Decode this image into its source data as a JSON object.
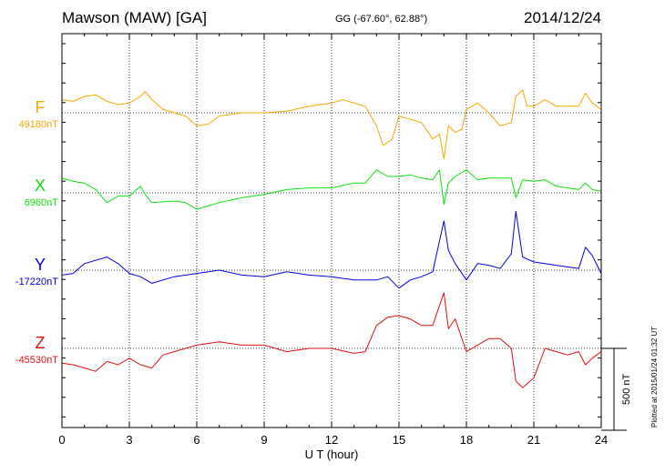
{
  "header": {
    "title": "Mawson (MAW)  [GA]",
    "coords": "GG (-67.60°,  62.88°)",
    "date": "2014/12/24"
  },
  "footer": {
    "stamp": "Plotted at 2015/01/24 01:32 UT",
    "scale_label": "500 nT"
  },
  "chart_data": {
    "type": "line",
    "xlabel": "U T (hour)",
    "xlim": [
      0,
      24
    ],
    "xticks": [
      0,
      3,
      6,
      9,
      12,
      15,
      18,
      21,
      24
    ],
    "xtick_labels": [
      "0",
      "3",
      "6",
      "9",
      "12",
      "15",
      "18",
      "21",
      "24"
    ],
    "grid": true,
    "scale_bar_nT": 500,
    "series": [
      {
        "name": "F",
        "color": "#f5a800",
        "baseline_label": "49180nT",
        "baseline_nT": 49180,
        "points": [
          [
            0,
            80
          ],
          [
            0.5,
            70
          ],
          [
            1,
            100
          ],
          [
            1.5,
            110
          ],
          [
            2,
            70
          ],
          [
            2.5,
            50
          ],
          [
            3,
            60
          ],
          [
            3.5,
            100
          ],
          [
            3.7,
            130
          ],
          [
            4,
            80
          ],
          [
            4.5,
            20
          ],
          [
            5,
            0
          ],
          [
            5.5,
            -20
          ],
          [
            6,
            -80
          ],
          [
            6.5,
            -70
          ],
          [
            7,
            -20
          ],
          [
            8,
            0
          ],
          [
            9,
            0
          ],
          [
            10,
            10
          ],
          [
            11,
            40
          ],
          [
            12,
            60
          ],
          [
            12.5,
            80
          ],
          [
            13,
            60
          ],
          [
            13.5,
            40
          ],
          [
            14,
            -80
          ],
          [
            14.3,
            -200
          ],
          [
            14.7,
            -160
          ],
          [
            15,
            -20
          ],
          [
            15.5,
            -40
          ],
          [
            16,
            -60
          ],
          [
            16.5,
            -160
          ],
          [
            16.8,
            -130
          ],
          [
            17,
            -280
          ],
          [
            17.2,
            -80
          ],
          [
            17.5,
            -120
          ],
          [
            17.8,
            -100
          ],
          [
            18,
            20
          ],
          [
            18.5,
            60
          ],
          [
            19,
            0
          ],
          [
            19.5,
            -80
          ],
          [
            20,
            -60
          ],
          [
            20.2,
            100
          ],
          [
            20.5,
            140
          ],
          [
            20.7,
            40
          ],
          [
            21,
            40
          ],
          [
            21.5,
            80
          ],
          [
            22,
            40
          ],
          [
            22.5,
            40
          ],
          [
            23,
            40
          ],
          [
            23.3,
            120
          ],
          [
            23.6,
            60
          ],
          [
            24,
            20
          ]
        ]
      },
      {
        "name": "X",
        "color": "#10e010",
        "baseline_label": "6960nT",
        "baseline_nT": 6960,
        "points": [
          [
            0,
            90
          ],
          [
            0.5,
            70
          ],
          [
            1,
            60
          ],
          [
            1.5,
            20
          ],
          [
            2,
            -60
          ],
          [
            2.5,
            -20
          ],
          [
            3,
            -20
          ],
          [
            3.5,
            40
          ],
          [
            3.7,
            -10
          ],
          [
            4,
            -60
          ],
          [
            5,
            -50
          ],
          [
            5.5,
            -60
          ],
          [
            6,
            -100
          ],
          [
            6.5,
            -80
          ],
          [
            7,
            -60
          ],
          [
            8,
            -30
          ],
          [
            9,
            -10
          ],
          [
            10,
            20
          ],
          [
            11,
            30
          ],
          [
            12,
            30
          ],
          [
            13,
            60
          ],
          [
            13.5,
            60
          ],
          [
            14,
            140
          ],
          [
            14.5,
            100
          ],
          [
            15,
            100
          ],
          [
            15.5,
            110
          ],
          [
            16,
            90
          ],
          [
            16.5,
            80
          ],
          [
            16.8,
            140
          ],
          [
            17,
            -70
          ],
          [
            17.2,
            60
          ],
          [
            17.5,
            100
          ],
          [
            18,
            140
          ],
          [
            18.5,
            80
          ],
          [
            19,
            90
          ],
          [
            19.5,
            90
          ],
          [
            20,
            90
          ],
          [
            20.2,
            -30
          ],
          [
            20.5,
            80
          ],
          [
            21,
            70
          ],
          [
            21.5,
            80
          ],
          [
            22,
            40
          ],
          [
            23,
            20
          ],
          [
            23.3,
            60
          ],
          [
            23.6,
            20
          ],
          [
            24,
            10
          ]
        ]
      },
      {
        "name": "Y",
        "color": "#0000e0",
        "baseline_label": "-17220nT",
        "baseline_nT": -17220,
        "points": [
          [
            0,
            -30
          ],
          [
            0.5,
            -20
          ],
          [
            1,
            40
          ],
          [
            1.5,
            60
          ],
          [
            2,
            80
          ],
          [
            2.5,
            40
          ],
          [
            3,
            -20
          ],
          [
            3.5,
            -40
          ],
          [
            4,
            -80
          ],
          [
            5,
            -40
          ],
          [
            6,
            -20
          ],
          [
            7,
            0
          ],
          [
            8,
            -30
          ],
          [
            9,
            -40
          ],
          [
            10,
            -10
          ],
          [
            11,
            -30
          ],
          [
            12,
            -40
          ],
          [
            13,
            -60
          ],
          [
            14,
            -60
          ],
          [
            14.5,
            -40
          ],
          [
            15,
            -110
          ],
          [
            15.5,
            -60
          ],
          [
            16,
            -40
          ],
          [
            16.5,
            -10
          ],
          [
            17,
            300
          ],
          [
            17.2,
            120
          ],
          [
            17.5,
            40
          ],
          [
            18,
            -60
          ],
          [
            18.5,
            40
          ],
          [
            19,
            30
          ],
          [
            19.5,
            10
          ],
          [
            20,
            100
          ],
          [
            20.2,
            360
          ],
          [
            20.5,
            80
          ],
          [
            21,
            50
          ],
          [
            22,
            30
          ],
          [
            23,
            10
          ],
          [
            23.3,
            140
          ],
          [
            23.6,
            90
          ],
          [
            24,
            -20
          ]
        ]
      },
      {
        "name": "Z",
        "color": "#e01010",
        "baseline_label": "-45530nT",
        "baseline_nT": -45530,
        "points": [
          [
            0,
            -90
          ],
          [
            0.5,
            -100
          ],
          [
            1,
            -120
          ],
          [
            1.5,
            -140
          ],
          [
            2,
            -80
          ],
          [
            2.5,
            -100
          ],
          [
            3,
            -60
          ],
          [
            3.5,
            -100
          ],
          [
            4,
            -120
          ],
          [
            4.5,
            -40
          ],
          [
            5,
            -20
          ],
          [
            6,
            20
          ],
          [
            7,
            40
          ],
          [
            8,
            20
          ],
          [
            9,
            20
          ],
          [
            10,
            -20
          ],
          [
            11,
            0
          ],
          [
            12,
            0
          ],
          [
            13,
            -30
          ],
          [
            13.5,
            -20
          ],
          [
            14,
            140
          ],
          [
            14.5,
            190
          ],
          [
            15,
            200
          ],
          [
            15.5,
            180
          ],
          [
            16,
            140
          ],
          [
            16.5,
            140
          ],
          [
            17,
            340
          ],
          [
            17.2,
            120
          ],
          [
            17.5,
            180
          ],
          [
            18,
            -20
          ],
          [
            18.5,
            20
          ],
          [
            19,
            60
          ],
          [
            19.5,
            60
          ],
          [
            20,
            0
          ],
          [
            20.2,
            -200
          ],
          [
            20.5,
            -240
          ],
          [
            21,
            -180
          ],
          [
            21.5,
            0
          ],
          [
            22,
            -20
          ],
          [
            22.5,
            -40
          ],
          [
            23,
            -20
          ],
          [
            23.3,
            -100
          ],
          [
            23.6,
            -60
          ],
          [
            24,
            -20
          ]
        ]
      }
    ]
  }
}
